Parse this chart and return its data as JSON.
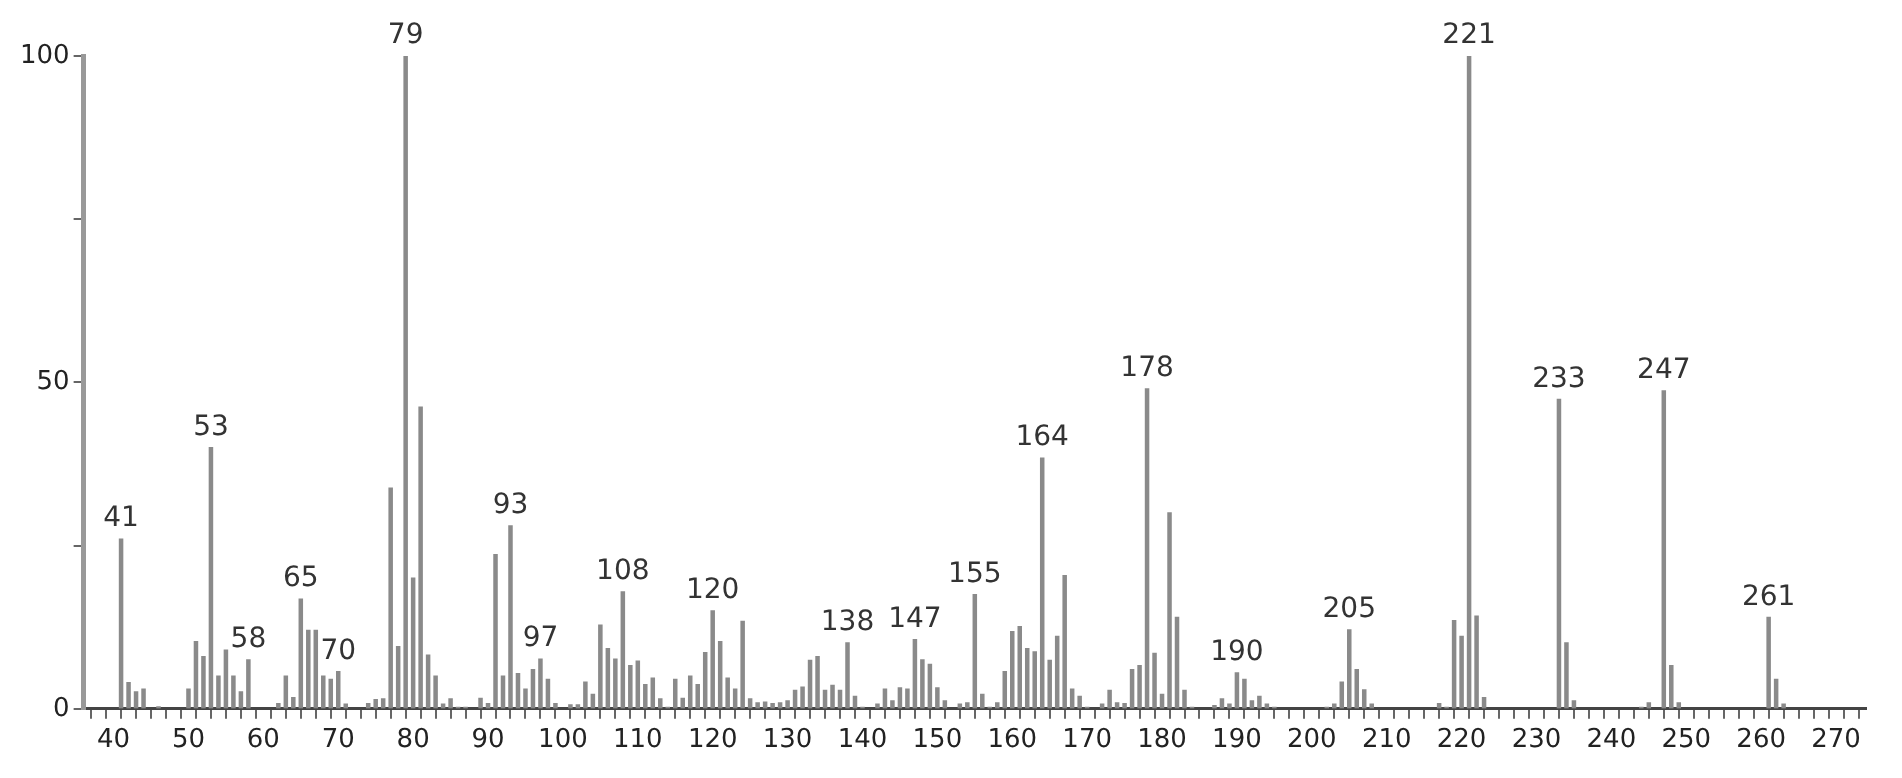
{
  "chart_data": {
    "type": "bar",
    "color": "#8a8a8a",
    "x": [
      41,
      42,
      43,
      44,
      46,
      50,
      51,
      52,
      53,
      54,
      55,
      56,
      57,
      58,
      62,
      63,
      64,
      65,
      66,
      67,
      68,
      69,
      70,
      71,
      74,
      75,
      76,
      77,
      78,
      79,
      80,
      81,
      82,
      83,
      84,
      85,
      86,
      87,
      89,
      90,
      91,
      92,
      93,
      94,
      95,
      96,
      97,
      98,
      99,
      101,
      102,
      103,
      104,
      105,
      106,
      107,
      108,
      109,
      110,
      111,
      112,
      113,
      114,
      115,
      116,
      117,
      118,
      119,
      120,
      121,
      122,
      123,
      124,
      125,
      126,
      127,
      128,
      129,
      130,
      131,
      132,
      133,
      134,
      135,
      136,
      137,
      138,
      139,
      140,
      142,
      143,
      144,
      145,
      146,
      147,
      148,
      149,
      150,
      151,
      153,
      154,
      155,
      156,
      157,
      158,
      159,
      160,
      161,
      162,
      163,
      164,
      165,
      166,
      167,
      168,
      169,
      170,
      172,
      173,
      174,
      175,
      176,
      177,
      178,
      179,
      180,
      181,
      182,
      183,
      184,
      187,
      188,
      189,
      190,
      191,
      192,
      193,
      194,
      195,
      202,
      203,
      204,
      205,
      206,
      207,
      208,
      217,
      218,
      219,
      220,
      221,
      222,
      223,
      233,
      234,
      235,
      244,
      245,
      247,
      248,
      249,
      261,
      262,
      263
    ],
    "values": [
      26,
      4,
      2.6,
      3,
      0.3,
      3,
      10.3,
      8,
      40,
      5,
      9,
      5,
      2.6,
      7.5,
      0.8,
      5,
      1.7,
      16.8,
      12,
      12,
      5,
      4.5,
      5.7,
      0.7,
      0.8,
      1.4,
      1.5,
      33.8,
      9.5,
      100,
      20,
      46.2,
      8.2,
      5,
      0.7,
      1.5,
      0.2,
      0.2,
      1.6,
      0.8,
      23.6,
      5,
      28,
      5.4,
      3,
      6,
      7.6,
      4.5,
      0.8,
      0.6,
      0.6,
      4.1,
      2.2,
      12.8,
      9.2,
      7.6,
      17.9,
      6.6,
      7.3,
      3.7,
      4.7,
      1.5,
      0.2,
      4.5,
      1.6,
      5,
      3.7,
      8.6,
      15,
      10.3,
      4.7,
      3,
      13.4,
      1.5,
      0.9,
      1,
      0.8,
      0.9,
      1.2,
      2.8,
      3.3,
      7.4,
      8,
      2.8,
      3.6,
      2.8,
      10.1,
      1.9,
      0.2,
      0.7,
      3,
      1.2,
      3.2,
      3,
      10.6,
      7.5,
      6.8,
      3.2,
      1.2,
      0.7,
      0.9,
      17.5,
      2.2,
      0.2,
      0.9,
      5.7,
      11.8,
      12.6,
      9.2,
      8.7,
      38.4,
      7.4,
      11.1,
      20.4,
      3,
      1.9,
      0.2,
      0.7,
      2.8,
      0.9,
      0.8,
      6,
      6.6,
      49,
      8.5,
      2.2,
      30,
      14,
      2.8,
      0.2,
      0.5,
      1.5,
      0.7,
      5.5,
      4.5,
      1.2,
      1.9,
      0.7,
      0.2,
      0.2,
      0.7,
      4.1,
      12.1,
      6,
      2.9,
      0.7,
      0.8,
      0.2,
      13.5,
      11.1,
      100,
      14.2,
      1.7,
      47.4,
      10.1,
      1.2,
      0.2,
      0.9,
      48.7,
      6.6,
      0.9,
      14,
      4.5,
      0.7
    ],
    "xlim": [
      36,
      274
    ],
    "xticks": [
      {
        "value": 38,
        "label": null
      },
      40,
      {
        "value": 42,
        "label": null
      },
      {
        "value": 44,
        "label": null
      },
      {
        "value": 46,
        "label": null
      },
      {
        "value": 48,
        "label": null
      },
      50,
      {
        "value": 52,
        "label": null
      },
      {
        "value": 54,
        "label": null
      },
      {
        "value": 56,
        "label": null
      },
      {
        "value": 58,
        "label": null
      },
      60,
      {
        "value": 62,
        "label": null
      },
      {
        "value": 64,
        "label": null
      },
      {
        "value": 66,
        "label": null
      },
      {
        "value": 68,
        "label": null
      },
      70,
      {
        "value": 72,
        "label": null
      },
      {
        "value": 74,
        "label": null
      },
      {
        "value": 76,
        "label": null
      },
      {
        "value": 78,
        "label": null
      },
      80,
      {
        "value": 82,
        "label": null
      },
      {
        "value": 84,
        "label": null
      },
      {
        "value": 86,
        "label": null
      },
      {
        "value": 88,
        "label": null
      },
      90,
      {
        "value": 92,
        "label": null
      },
      {
        "value": 94,
        "label": null
      },
      {
        "value": 96,
        "label": null
      },
      {
        "value": 98,
        "label": null
      },
      100,
      {
        "value": 102,
        "label": null
      },
      {
        "value": 104,
        "label": null
      },
      {
        "value": 106,
        "label": null
      },
      {
        "value": 108,
        "label": null
      },
      110,
      {
        "value": 112,
        "label": null
      },
      {
        "value": 114,
        "label": null
      },
      {
        "value": 116,
        "label": null
      },
      {
        "value": 118,
        "label": null
      },
      120,
      {
        "value": 122,
        "label": null
      },
      {
        "value": 124,
        "label": null
      },
      {
        "value": 126,
        "label": null
      },
      {
        "value": 128,
        "label": null
      },
      130,
      {
        "value": 132,
        "label": null
      },
      {
        "value": 134,
        "label": null
      },
      {
        "value": 136,
        "label": null
      },
      {
        "value": 138,
        "label": null
      },
      140,
      {
        "value": 142,
        "label": null
      },
      {
        "value": 144,
        "label": null
      },
      {
        "value": 146,
        "label": null
      },
      {
        "value": 148,
        "label": null
      },
      150,
      {
        "value": 152,
        "label": null
      },
      {
        "value": 154,
        "label": null
      },
      {
        "value": 156,
        "label": null
      },
      {
        "value": 158,
        "label": null
      },
      160,
      {
        "value": 162,
        "label": null
      },
      {
        "value": 164,
        "label": null
      },
      {
        "value": 166,
        "label": null
      },
      {
        "value": 168,
        "label": null
      },
      170,
      {
        "value": 172,
        "label": null
      },
      {
        "value": 174,
        "label": null
      },
      {
        "value": 176,
        "label": null
      },
      {
        "value": 178,
        "label": null
      },
      180,
      {
        "value": 182,
        "label": null
      },
      {
        "value": 184,
        "label": null
      },
      {
        "value": 186,
        "label": null
      },
      {
        "value": 188,
        "label": null
      },
      190,
      {
        "value": 192,
        "label": null
      },
      {
        "value": 194,
        "label": null
      },
      {
        "value": 196,
        "label": null
      },
      {
        "value": 198,
        "label": null
      },
      200,
      {
        "value": 202,
        "label": null
      },
      {
        "value": 204,
        "label": null
      },
      {
        "value": 206,
        "label": null
      },
      {
        "value": 208,
        "label": null
      },
      210,
      {
        "value": 212,
        "label": null
      },
      {
        "value": 214,
        "label": null
      },
      {
        "value": 216,
        "label": null
      },
      {
        "value": 218,
        "label": null
      },
      220,
      {
        "value": 222,
        "label": null
      },
      {
        "value": 224,
        "label": null
      },
      {
        "value": 226,
        "label": null
      },
      {
        "value": 228,
        "label": null
      },
      230,
      {
        "value": 232,
        "label": null
      },
      {
        "value": 234,
        "label": null
      },
      {
        "value": 236,
        "label": null
      },
      {
        "value": 238,
        "label": null
      },
      240,
      {
        "value": 242,
        "label": null
      },
      {
        "value": 244,
        "label": null
      },
      {
        "value": 246,
        "label": null
      },
      {
        "value": 248,
        "label": null
      },
      250,
      {
        "value": 252,
        "label": null
      },
      {
        "value": 254,
        "label": null
      },
      {
        "value": 256,
        "label": null
      },
      {
        "value": 258,
        "label": null
      },
      260,
      {
        "value": 262,
        "label": null
      },
      {
        "value": 264,
        "label": null
      },
      {
        "value": 266,
        "label": null
      },
      {
        "value": 268,
        "label": null
      },
      270,
      {
        "value": 272,
        "label": null
      }
    ],
    "ylim": [
      0,
      100
    ],
    "yticks": [
      0,
      {
        "value": 25,
        "label": null
      },
      50,
      {
        "value": 75,
        "label": null
      },
      100
    ],
    "grid": false,
    "legend": false,
    "annotations": [
      {
        "text": "41",
        "x": 41,
        "y": 26
      },
      {
        "text": "53",
        "x": 53,
        "y": 40
      },
      {
        "text": "58",
        "x": 58,
        "y": 7.5
      },
      {
        "text": "65",
        "x": 65,
        "y": 16.8
      },
      {
        "text": "70",
        "x": 70,
        "y": 5.7
      },
      {
        "text": "79",
        "x": 79,
        "y": 100
      },
      {
        "text": "93",
        "x": 93,
        "y": 28
      },
      {
        "text": "97",
        "x": 97,
        "y": 7.6
      },
      {
        "text": "108",
        "x": 108,
        "y": 17.9
      },
      {
        "text": "120",
        "x": 120,
        "y": 15
      },
      {
        "text": "138",
        "x": 138,
        "y": 10.1
      },
      {
        "text": "147",
        "x": 147,
        "y": 10.6
      },
      {
        "text": "155",
        "x": 155,
        "y": 17.5
      },
      {
        "text": "164",
        "x": 164,
        "y": 38.4
      },
      {
        "text": "178",
        "x": 178,
        "y": 49
      },
      {
        "text": "190",
        "x": 190,
        "y": 5.5
      },
      {
        "text": "205",
        "x": 205,
        "y": 12.1
      },
      {
        "text": "221",
        "x": 221,
        "y": 100
      },
      {
        "text": "233",
        "x": 233,
        "y": 47.4
      },
      {
        "text": "247",
        "x": 247,
        "y": 48.7
      },
      {
        "text": "261",
        "x": 261,
        "y": 14
      }
    ]
  }
}
